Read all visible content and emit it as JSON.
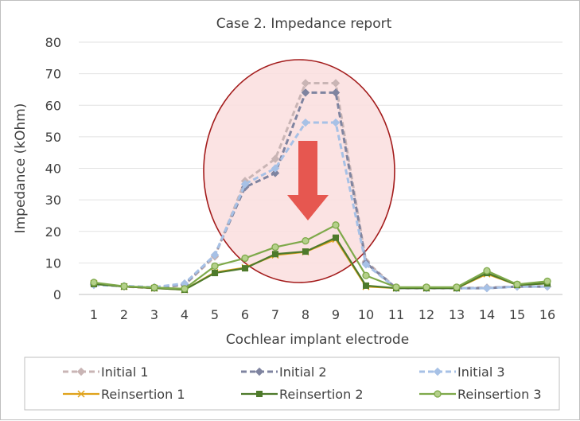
{
  "chart_data": {
    "type": "line",
    "title": "Case 2. Impedance report",
    "xlabel": "Cochlear implant electrode",
    "ylabel": "Impedance (kOhm)",
    "ylim": [
      0,
      80
    ],
    "yticks": [
      0,
      10,
      20,
      30,
      40,
      50,
      60,
      70,
      80
    ],
    "categories": [
      "1",
      "2",
      "3",
      "4",
      "5",
      "6",
      "7",
      "8",
      "9",
      "10",
      "11",
      "12",
      "13",
      "14",
      "15",
      "16"
    ],
    "grid": true,
    "legend_position": "bottom",
    "series": [
      {
        "name": "Initial 1",
        "color": "#c9b5b5",
        "dash": true,
        "marker": "diamond",
        "values": [
          3.5,
          2.5,
          2.0,
          3.0,
          12.0,
          36.0,
          43.0,
          67.0,
          67.0,
          10.5,
          2.0,
          2.0,
          2.0,
          2.2,
          2.5,
          2.5
        ]
      },
      {
        "name": "Initial 2",
        "color": "#7f84a0",
        "dash": true,
        "marker": "diamond",
        "values": [
          3.2,
          2.6,
          2.2,
          3.2,
          12.5,
          34.0,
          38.5,
          64.0,
          64.0,
          10.0,
          2.0,
          2.0,
          2.0,
          2.0,
          2.5,
          2.5
        ]
      },
      {
        "name": "Initial 3",
        "color": "#a7c1e6",
        "dash": true,
        "marker": "diamond",
        "values": [
          3.0,
          2.7,
          2.3,
          3.5,
          12.5,
          35.0,
          40.0,
          54.5,
          54.5,
          9.5,
          2.0,
          2.0,
          2.0,
          2.0,
          2.5,
          2.5
        ]
      },
      {
        "name": "Reinsertion 1",
        "color": "#e0a21a",
        "dash": false,
        "marker": "x",
        "values": [
          3.5,
          2.5,
          2.0,
          1.5,
          7.0,
          8.5,
          12.5,
          13.5,
          17.5,
          2.5,
          2.0,
          2.0,
          2.0,
          6.5,
          3.0,
          3.5
        ]
      },
      {
        "name": "Reinsertion 2",
        "color": "#4e7a2b",
        "dash": false,
        "marker": "square",
        "values": [
          3.3,
          2.5,
          2.0,
          1.5,
          6.8,
          8.3,
          12.8,
          13.6,
          18.0,
          2.8,
          2.0,
          2.0,
          2.0,
          6.8,
          3.0,
          3.5
        ]
      },
      {
        "name": "Reinsertion 3",
        "color": "#7ea94a",
        "dash": false,
        "marker": "circle",
        "values": [
          3.8,
          2.6,
          2.2,
          1.8,
          9.0,
          11.5,
          15.0,
          17.0,
          22.0,
          6.0,
          2.3,
          2.3,
          2.3,
          7.5,
          3.2,
          4.2
        ]
      }
    ],
    "annotations": [
      {
        "type": "ellipse",
        "label": "affected-region",
        "electrodes": [
          6,
          9
        ],
        "fill": "#fbe0e0",
        "stroke": "#a31b1b"
      },
      {
        "type": "arrow",
        "direction": "down",
        "color": "#e65750"
      }
    ]
  }
}
